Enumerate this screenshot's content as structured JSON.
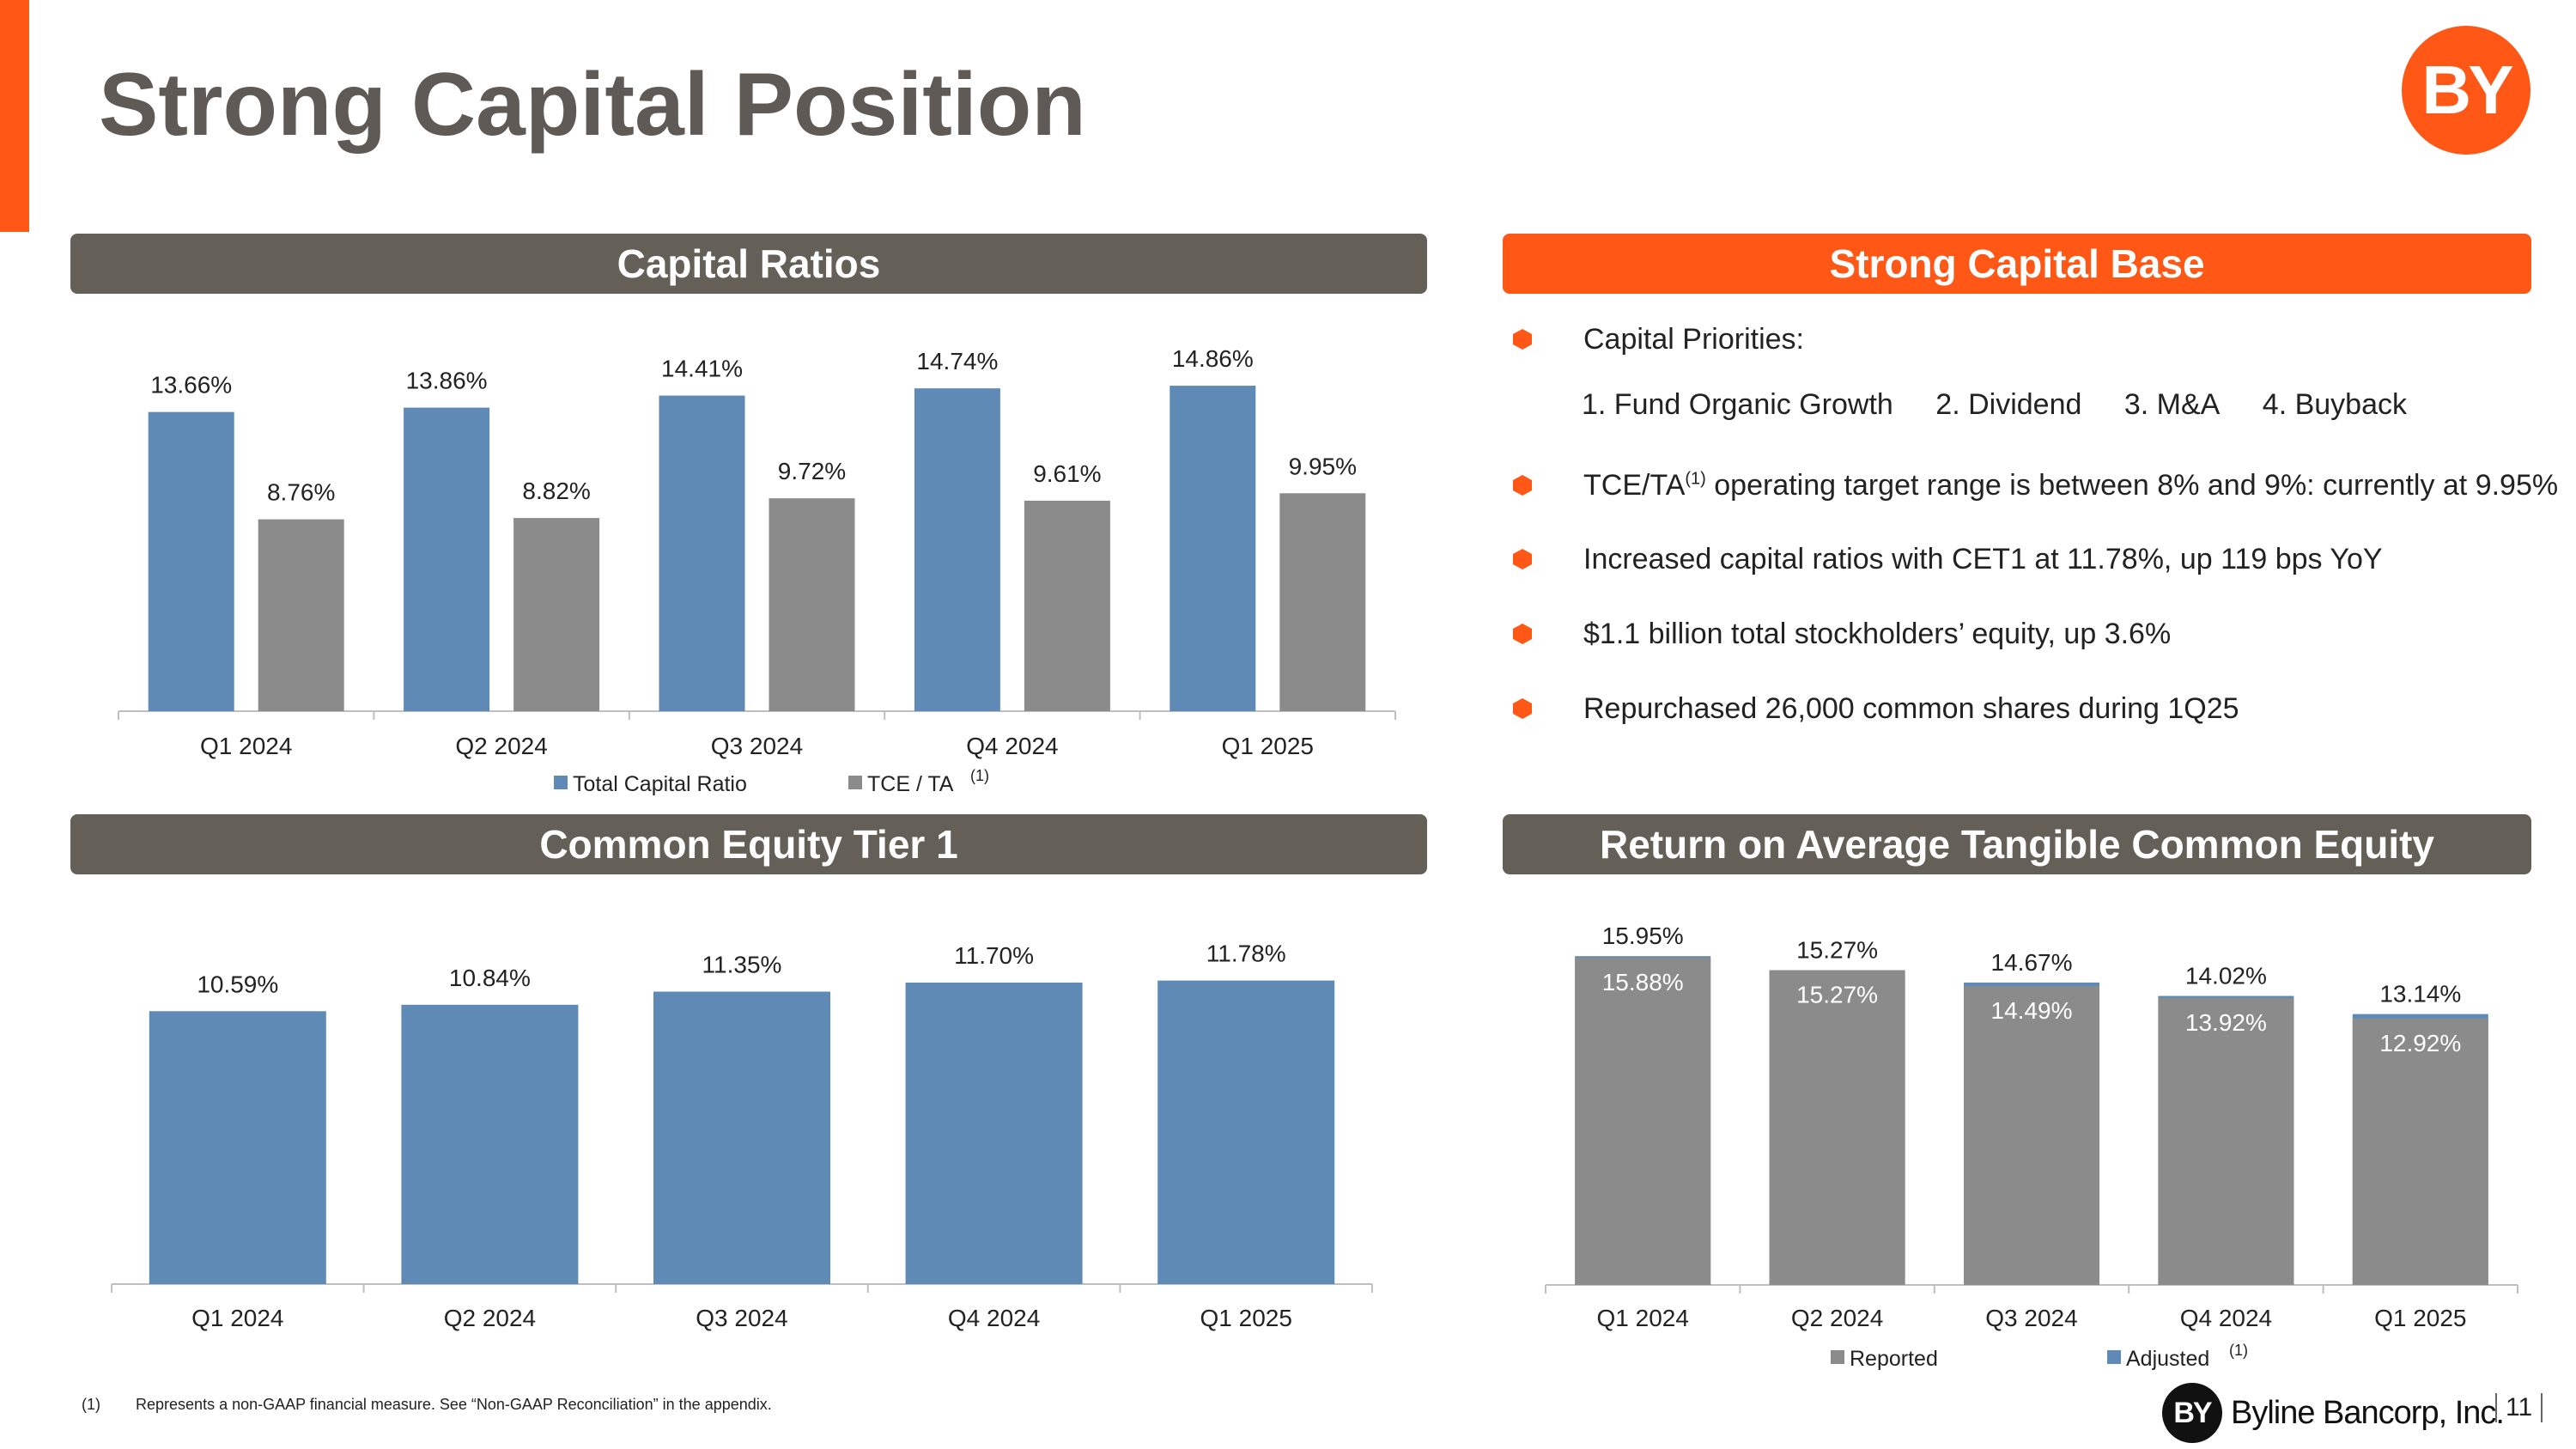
{
  "title": "Strong Capital Position",
  "logo_text": "BY",
  "colors": {
    "orange": "#fe5716",
    "header_gray": "#646058",
    "blue": "#5f8ab5",
    "gray": "#8b8b8b"
  },
  "headers": {
    "capital_ratios": "Capital Ratios",
    "capital_base": "Strong Capital Base",
    "cet1": "Common Equity Tier 1",
    "rotce": "Return on Average Tangible Common Equity"
  },
  "capital_base": {
    "priorities_label": "Capital Priorities:",
    "priorities": [
      "1. Fund Organic Growth",
      "2. Dividend",
      "3. M&A",
      "4. Buyback"
    ],
    "bullet_tce_pre": "TCE/TA",
    "bullet_tce_sup": "(1)",
    "bullet_tce_post": " operating target range is between 8% and 9%: currently at 9.95%",
    "bullets": [
      "Increased capital ratios with CET1 at 11.78%, up 119 bps YoY",
      "$1.1 billion total stockholders’ equity, up 3.6%",
      "Repurchased 26,000 common shares during 1Q25"
    ]
  },
  "chart_data": [
    {
      "id": "capital_ratios",
      "type": "bar",
      "title": "Capital Ratios",
      "categories": [
        "Q1 2024",
        "Q2 2024",
        "Q3 2024",
        "Q4 2024",
        "Q1 2025"
      ],
      "series": [
        {
          "name": "Total Capital Ratio",
          "values": [
            13.66,
            13.86,
            14.41,
            14.74,
            14.86
          ],
          "labels": [
            "13.66%",
            "13.86%",
            "14.41%",
            "14.74%",
            "14.86%"
          ]
        },
        {
          "name": "TCE / TA",
          "note": "(1)",
          "values": [
            8.76,
            8.82,
            9.72,
            9.61,
            9.95
          ],
          "labels": [
            "8.76%",
            "8.82%",
            "9.72%",
            "9.61%",
            "9.95%"
          ]
        }
      ],
      "ylim": [
        0,
        16
      ],
      "legend": "bottom"
    },
    {
      "id": "cet1",
      "type": "bar",
      "title": "Common Equity Tier 1",
      "categories": [
        "Q1 2024",
        "Q2 2024",
        "Q3 2024",
        "Q4 2024",
        "Q1 2025"
      ],
      "series": [
        {
          "name": "Common Equity Tier 1",
          "values": [
            10.59,
            10.84,
            11.35,
            11.7,
            11.78
          ],
          "labels": [
            "10.59%",
            "10.84%",
            "11.35%",
            "11.70%",
            "11.78%"
          ]
        }
      ],
      "ylim": [
        0,
        12.5
      ]
    },
    {
      "id": "rotce",
      "type": "bar",
      "title": "Return on Average Tangible Common Equity",
      "categories": [
        "Q1 2024",
        "Q2 2024",
        "Q3 2024",
        "Q4 2024",
        "Q1 2025"
      ],
      "series": [
        {
          "name": "Reported",
          "values": [
            15.88,
            15.27,
            14.49,
            13.92,
            12.92
          ],
          "labels": [
            "15.88%",
            "15.27%",
            "14.49%",
            "13.92%",
            "12.92%"
          ]
        },
        {
          "name": "Adjusted",
          "note": "(1)",
          "values": [
            15.95,
            15.27,
            14.67,
            14.02,
            13.14
          ],
          "labels": [
            "15.95%",
            "15.27%",
            "14.67%",
            "14.02%",
            "13.14%"
          ]
        }
      ],
      "ylim": [
        0,
        16.5
      ],
      "legend": "bottom"
    }
  ],
  "footnote_num": "(1)",
  "footnote": "Represents a non-GAAP financial measure.  See “Non-GAAP Reconciliation” in the appendix.",
  "footer_logo_mark": "BY",
  "footer_company": "Byline Bancorp, Inc.",
  "page_number": "11"
}
